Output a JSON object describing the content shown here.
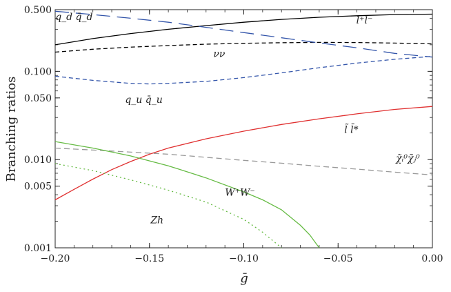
{
  "chart_data": {
    "type": "line",
    "xlabel": "ḡ",
    "ylabel": "Branching ratios",
    "xlim": [
      -0.2,
      0.0
    ],
    "ylim": [
      0.001,
      0.5
    ],
    "yscale": "log",
    "grid": false,
    "x_ticks": [
      -0.2,
      -0.15,
      -0.1,
      -0.05,
      0.0
    ],
    "x_tick_labels": [
      "−0.20",
      "−0.15",
      "−0.10",
      "−0.05",
      "0.00"
    ],
    "y_ticks": [
      0.001,
      0.005,
      0.01,
      0.05,
      0.1,
      0.5
    ],
    "y_tick_labels": [
      "0.001",
      "0.005",
      "0.010",
      "0.050",
      "0.100",
      "0.500"
    ],
    "series": [
      {
        "name": "l⁺l⁻",
        "color": "#000000",
        "dash": "solid",
        "points": [
          [
            -0.2,
            0.2
          ],
          [
            -0.18,
            0.235
          ],
          [
            -0.16,
            0.268
          ],
          [
            -0.14,
            0.3
          ],
          [
            -0.12,
            0.33
          ],
          [
            -0.1,
            0.36
          ],
          [
            -0.08,
            0.388
          ],
          [
            -0.06,
            0.41
          ],
          [
            -0.04,
            0.427
          ],
          [
            -0.02,
            0.44
          ],
          [
            0.0,
            0.445
          ]
        ]
      },
      {
        "name": "νν",
        "color": "#000000",
        "dash": "short",
        "points": [
          [
            -0.2,
            0.165
          ],
          [
            -0.18,
            0.178
          ],
          [
            -0.16,
            0.188
          ],
          [
            -0.14,
            0.196
          ],
          [
            -0.12,
            0.203
          ],
          [
            -0.1,
            0.208
          ],
          [
            -0.08,
            0.211
          ],
          [
            -0.06,
            0.213
          ],
          [
            -0.04,
            0.212
          ],
          [
            -0.02,
            0.209
          ],
          [
            0.0,
            0.205
          ]
        ]
      },
      {
        "name": "q_d q̄_d",
        "color": "#3355aa",
        "dash": "long",
        "points": [
          [
            -0.2,
            0.48
          ],
          [
            -0.18,
            0.44
          ],
          [
            -0.16,
            0.4
          ],
          [
            -0.14,
            0.36
          ],
          [
            -0.12,
            0.315
          ],
          [
            -0.1,
            0.275
          ],
          [
            -0.08,
            0.24
          ],
          [
            -0.06,
            0.21
          ],
          [
            -0.04,
            0.185
          ],
          [
            -0.02,
            0.16
          ],
          [
            0.0,
            0.145
          ]
        ]
      },
      {
        "name": "q_u q̄_u",
        "color": "#3355aa",
        "dash": "short",
        "points": [
          [
            -0.2,
            0.088
          ],
          [
            -0.18,
            0.079
          ],
          [
            -0.16,
            0.073
          ],
          [
            -0.15,
            0.072
          ],
          [
            -0.14,
            0.073
          ],
          [
            -0.12,
            0.077
          ],
          [
            -0.1,
            0.085
          ],
          [
            -0.08,
            0.096
          ],
          [
            -0.06,
            0.11
          ],
          [
            -0.04,
            0.124
          ],
          [
            -0.02,
            0.137
          ],
          [
            0.0,
            0.148
          ]
        ]
      },
      {
        "name": "l̃ l̄*",
        "color": "#e03030",
        "dash": "solid",
        "points": [
          [
            -0.2,
            0.0035
          ],
          [
            -0.19,
            0.0046
          ],
          [
            -0.18,
            0.006
          ],
          [
            -0.17,
            0.0077
          ],
          [
            -0.16,
            0.0095
          ],
          [
            -0.15,
            0.0115
          ],
          [
            -0.14,
            0.0135
          ],
          [
            -0.12,
            0.0172
          ],
          [
            -0.1,
            0.021
          ],
          [
            -0.08,
            0.025
          ],
          [
            -0.06,
            0.029
          ],
          [
            -0.04,
            0.033
          ],
          [
            -0.02,
            0.037
          ],
          [
            0.0,
            0.04
          ]
        ]
      },
      {
        "name": "χ̃ᵢ⁰χ̃ⱼ⁰",
        "color": "#999999",
        "dash": "dash",
        "points": [
          [
            -0.2,
            0.0135
          ],
          [
            -0.17,
            0.0125
          ],
          [
            -0.14,
            0.0115
          ],
          [
            -0.12,
            0.0106
          ],
          [
            -0.1,
            0.0098
          ],
          [
            -0.08,
            0.0091
          ],
          [
            -0.06,
            0.0084
          ],
          [
            -0.04,
            0.0078
          ],
          [
            -0.02,
            0.0072
          ],
          [
            0.0,
            0.0067
          ]
        ]
      },
      {
        "name": "W⁺W⁻",
        "color": "#66bb44",
        "dash": "solid",
        "points": [
          [
            -0.2,
            0.016
          ],
          [
            -0.18,
            0.0135
          ],
          [
            -0.16,
            0.011
          ],
          [
            -0.14,
            0.0085
          ],
          [
            -0.12,
            0.0062
          ],
          [
            -0.1,
            0.0043
          ],
          [
            -0.09,
            0.0035
          ],
          [
            -0.08,
            0.0027
          ],
          [
            -0.07,
            0.0018
          ],
          [
            -0.065,
            0.0014
          ],
          [
            -0.06,
            0.001
          ]
        ]
      },
      {
        "name": "Zh",
        "color": "#66bb44",
        "dash": "dot",
        "points": [
          [
            -0.2,
            0.009
          ],
          [
            -0.18,
            0.0075
          ],
          [
            -0.16,
            0.0059
          ],
          [
            -0.14,
            0.0045
          ],
          [
            -0.12,
            0.0033
          ],
          [
            -0.1,
            0.0021
          ],
          [
            -0.09,
            0.0015
          ],
          [
            -0.08,
            0.001
          ]
        ]
      }
    ],
    "labels": [
      {
        "text": "q_d q̄_d",
        "x": -0.19,
        "y": 0.38
      },
      {
        "text": "l⁺l⁻",
        "x": -0.036,
        "y": 0.35
      },
      {
        "text": "νν",
        "x": -0.113,
        "y": 0.145
      },
      {
        "text": "q_u q̄_u",
        "x": -0.153,
        "y": 0.044
      },
      {
        "text": "l̃ l̄*",
        "x": -0.043,
        "y": 0.02
      },
      {
        "text": "χ̃ᵢ⁰χ̃ⱼ⁰",
        "x": -0.013,
        "y": 0.0095
      },
      {
        "text": "W⁺W⁻",
        "x": -0.102,
        "y": 0.0039
      },
      {
        "text": "Zh",
        "x": -0.146,
        "y": 0.0019
      }
    ]
  }
}
